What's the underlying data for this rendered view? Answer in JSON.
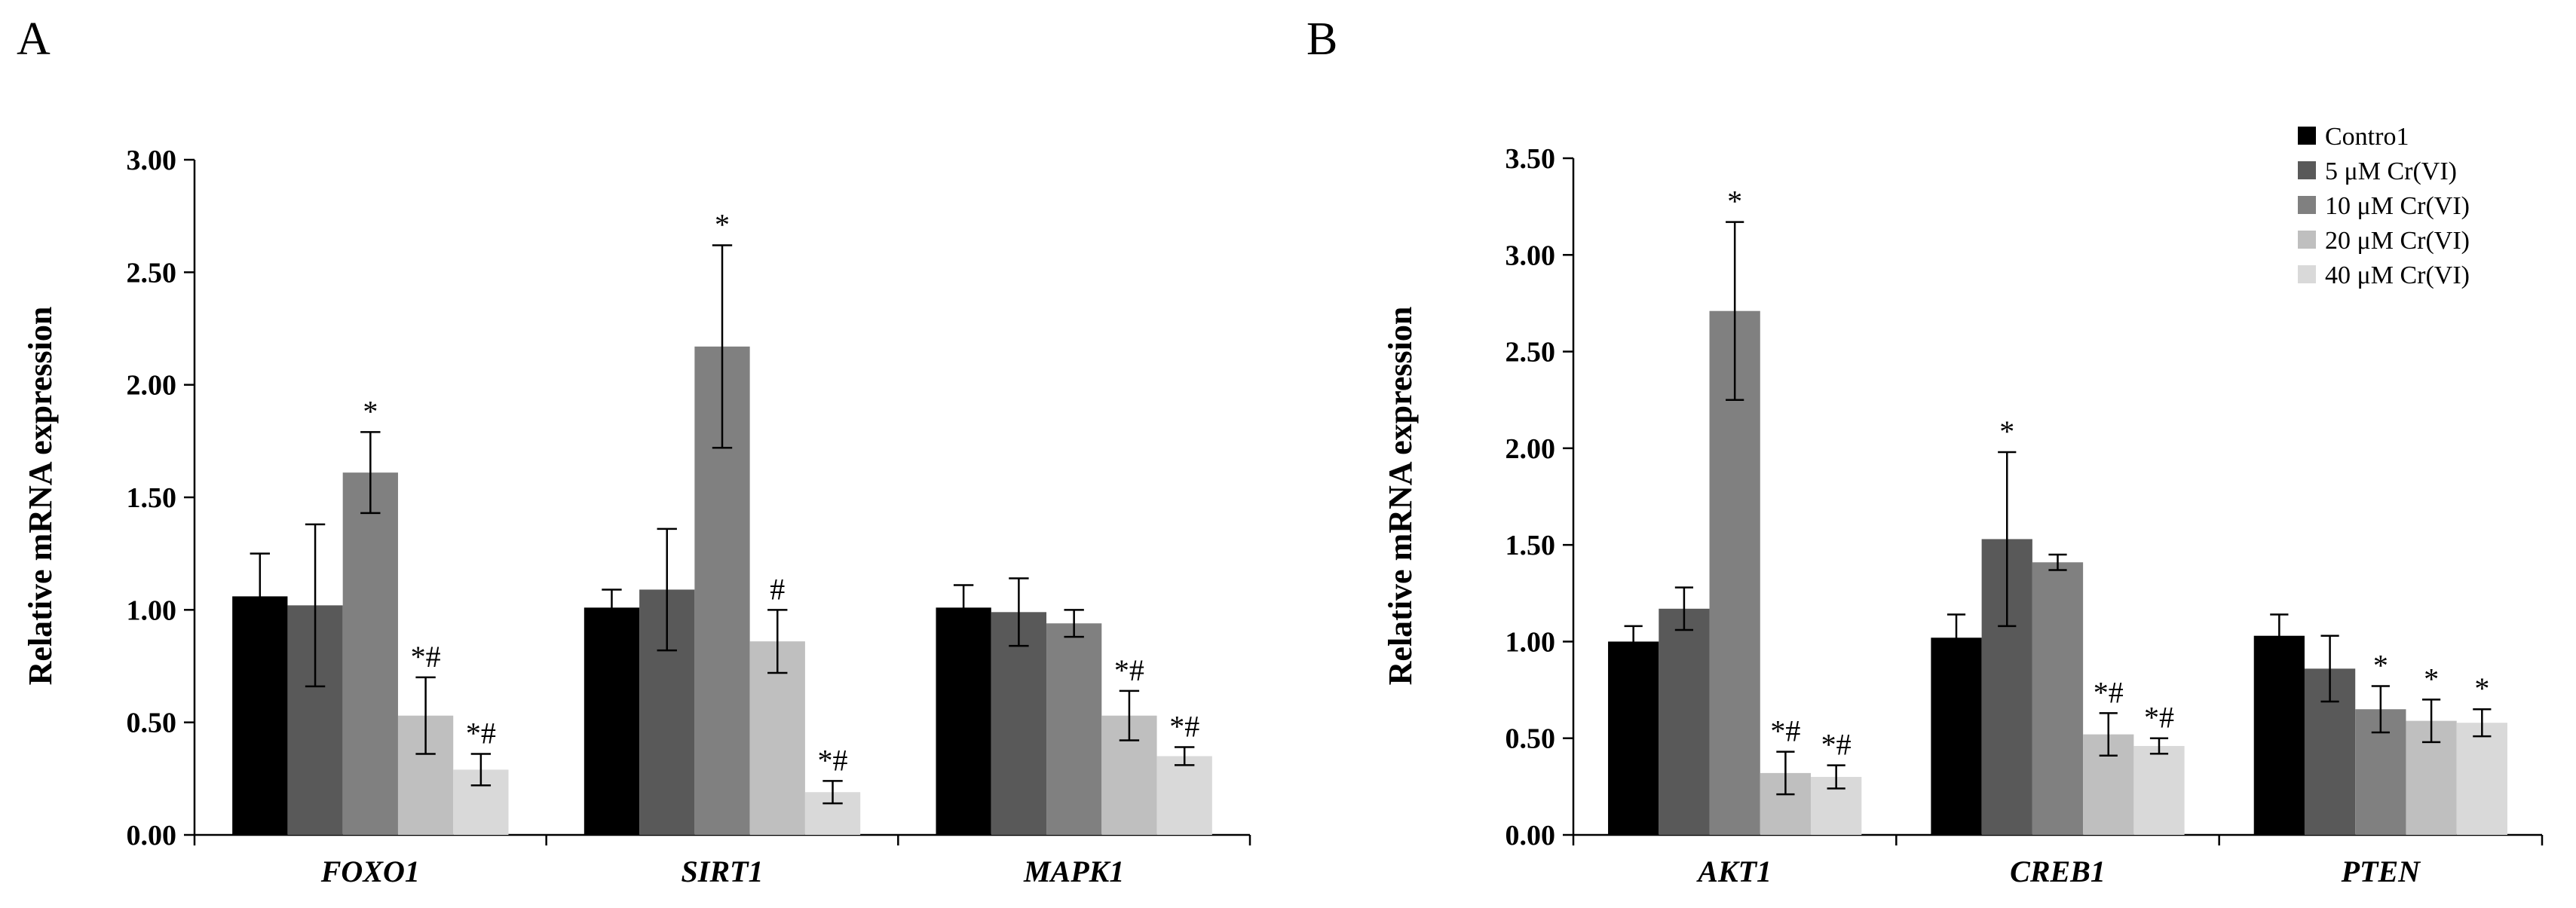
{
  "colors": {
    "series": [
      "#000000",
      "#595959",
      "#808080",
      "#bfbfbf",
      "#d9d9d9"
    ]
  },
  "legend_labels": [
    "Contro1",
    "5 μM Cr(VI)",
    "10 μM Cr(VI)",
    "20 μM Cr(VI)",
    "40 μM Cr(VI)"
  ],
  "chart_data": [
    {
      "panel": "A",
      "type": "bar",
      "ylabel": "Relative mRNA expression",
      "ylim": [
        0,
        3.0
      ],
      "yticks": [
        "0.00",
        "0.50",
        "1.00",
        "1.50",
        "2.00",
        "2.50",
        "3.00"
      ],
      "categories": [
        "FOXO1",
        "SIRT1",
        "MAPK1"
      ],
      "series": [
        {
          "name": "Contro1",
          "values": [
            1.06,
            1.01,
            1.01
          ],
          "errors": [
            0.19,
            0.08,
            0.1
          ],
          "annotations": [
            "",
            "",
            ""
          ]
        },
        {
          "name": "5 μM Cr(VI)",
          "values": [
            1.02,
            1.09,
            0.99
          ],
          "errors": [
            0.36,
            0.27,
            0.15
          ],
          "annotations": [
            "",
            "",
            ""
          ]
        },
        {
          "name": "10 μM Cr(VI)",
          "values": [
            1.61,
            2.17,
            0.94
          ],
          "errors": [
            0.18,
            0.45,
            0.06
          ],
          "annotations": [
            "*",
            "*",
            ""
          ]
        },
        {
          "name": "20 μM Cr(VI)",
          "values": [
            0.53,
            0.86,
            0.53
          ],
          "errors": [
            0.17,
            0.14,
            0.11
          ],
          "annotations": [
            "*#",
            "#",
            "*#"
          ]
        },
        {
          "name": "40 μM Cr(VI)",
          "values": [
            0.29,
            0.19,
            0.35
          ],
          "errors": [
            0.07,
            0.05,
            0.04
          ],
          "annotations": [
            "*#",
            "*#",
            "*#"
          ]
        }
      ]
    },
    {
      "panel": "B",
      "type": "bar",
      "ylabel": "Relative mRNA expression",
      "ylim": [
        0,
        3.5
      ],
      "yticks": [
        "0.00",
        "0.50",
        "1.00",
        "1.50",
        "2.00",
        "2.50",
        "3.00",
        "3.50"
      ],
      "categories": [
        "AKT1",
        "CREB1",
        "PTEN"
      ],
      "series": [
        {
          "name": "Contro1",
          "values": [
            1.0,
            1.02,
            1.03
          ],
          "errors": [
            0.08,
            0.12,
            0.11
          ],
          "annotations": [
            "",
            "",
            ""
          ]
        },
        {
          "name": "5 μM Cr(VI)",
          "values": [
            1.17,
            1.53,
            0.86
          ],
          "errors": [
            0.11,
            0.45,
            0.17
          ],
          "annotations": [
            "",
            "*",
            ""
          ]
        },
        {
          "name": "10 μM Cr(VI)",
          "values": [
            2.71,
            1.41,
            0.65
          ],
          "errors": [
            0.46,
            0.04,
            0.12
          ],
          "annotations": [
            "*",
            "",
            "*"
          ]
        },
        {
          "name": "20 μM Cr(VI)",
          "values": [
            0.32,
            0.52,
            0.59
          ],
          "errors": [
            0.11,
            0.11,
            0.11
          ],
          "annotations": [
            "*#",
            "*#",
            "*"
          ]
        },
        {
          "name": "40 μM Cr(VI)",
          "values": [
            0.3,
            0.46,
            0.58
          ],
          "errors": [
            0.06,
            0.04,
            0.07
          ],
          "annotations": [
            "*#",
            "*#",
            "*"
          ]
        }
      ]
    }
  ]
}
